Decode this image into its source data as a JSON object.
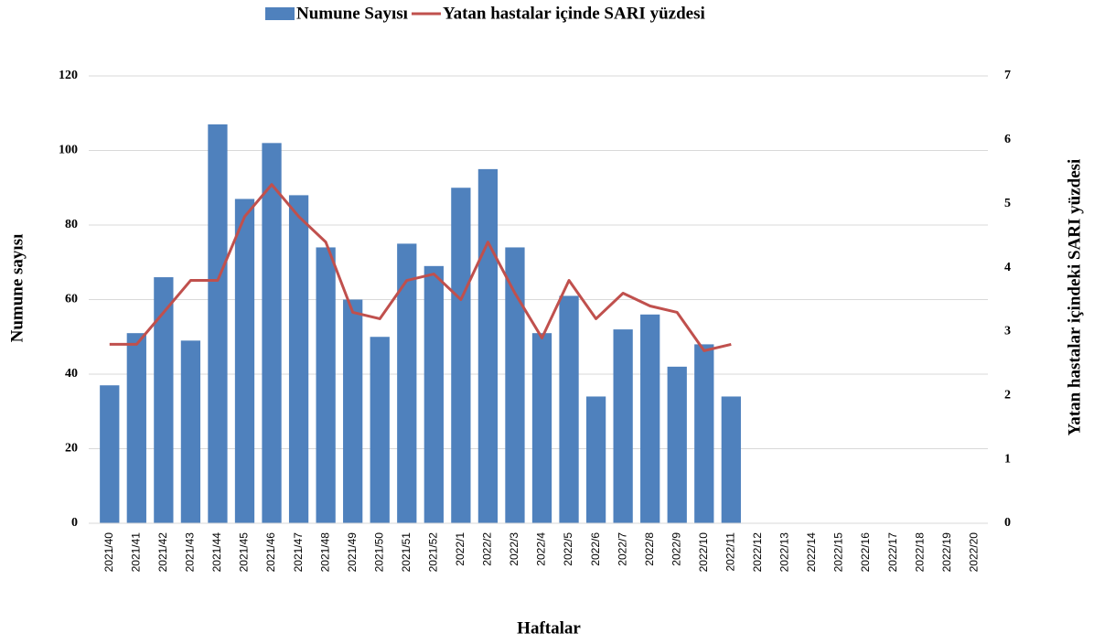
{
  "chart_data": {
    "type": "bar-line",
    "x_label": "Haftalar",
    "y_label": "Numune sayısı",
    "y2_label": "Yatan hastalar içindeki SARI yüzdesi",
    "categories": [
      "2021/40",
      "2021/41",
      "2021/42",
      "2021/43",
      "2021/44",
      "2021/45",
      "2021/46",
      "2021/47",
      "2021/48",
      "2021/49",
      "2021/50",
      "2021/51",
      "2021/52",
      "2022/1",
      "2022/2",
      "2022/3",
      "2022/4",
      "2022/5",
      "2022/6",
      "2022/7",
      "2022/8",
      "2022/9",
      "2022/10",
      "2022/11",
      "2022/12",
      "2022/13",
      "2022/14",
      "2022/15",
      "2022/16",
      "2022/17",
      "2022/18",
      "2022/19",
      "2022/20"
    ],
    "series": [
      {
        "name": "Numune Sayısı",
        "color": "#4f81bd",
        "kind": "bar",
        "values": [
          37,
          51,
          66,
          49,
          107,
          87,
          102,
          88,
          74,
          60,
          50,
          75,
          69,
          90,
          95,
          74,
          51,
          61,
          34,
          52,
          56,
          42,
          48,
          34,
          null,
          null,
          null,
          null,
          null,
          null,
          null,
          null,
          null
        ]
      },
      {
        "name": "Yatan hastalar içinde SARI yüzdesi",
        "color": "#c0504d",
        "kind": "line",
        "axis": "y2",
        "values": [
          2.8,
          2.8,
          3.3,
          3.8,
          3.8,
          4.8,
          5.3,
          4.8,
          4.4,
          3.3,
          3.2,
          3.8,
          3.9,
          3.5,
          4.4,
          3.6,
          2.9,
          3.8,
          3.2,
          3.6,
          3.4,
          3.3,
          2.7,
          2.8,
          null,
          null,
          null,
          null,
          null,
          null,
          null,
          null,
          null
        ]
      }
    ],
    "ylim": [
      0,
      120
    ],
    "yticks": [
      0,
      20,
      40,
      60,
      80,
      100,
      120
    ],
    "y2lim": [
      0,
      7
    ],
    "y2ticks": [
      0,
      1,
      2,
      3,
      4,
      5,
      6,
      7
    ],
    "grid": true,
    "legend": "top"
  }
}
